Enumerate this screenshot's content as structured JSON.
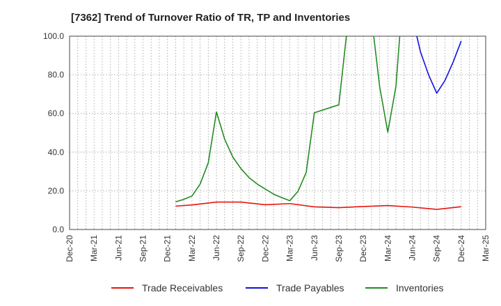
{
  "chart_data": {
    "type": "line",
    "title": "[7362]  Trend of Turnover Ratio of TR, TP and Inventories",
    "xlabel": "",
    "ylabel": "",
    "x_ticks": [
      "Dec-20",
      "Mar-21",
      "Jun-21",
      "Sep-21",
      "Dec-21",
      "Mar-22",
      "Jun-22",
      "Sep-22",
      "Dec-22",
      "Mar-23",
      "Jun-23",
      "Sep-23",
      "Dec-23",
      "Mar-24",
      "Jun-24",
      "Sep-24",
      "Dec-24",
      "Mar-25"
    ],
    "y_ticks": [
      "0.0",
      "20.0",
      "40.0",
      "60.0",
      "80.0",
      "100.0"
    ],
    "ylim": [
      0,
      100
    ],
    "grid": true,
    "legend_position": "bottom",
    "series": [
      {
        "name": "Trade Receivables",
        "color": "#e8140c",
        "points": [
          {
            "x": "2022-01",
            "y": 12.1
          },
          {
            "x": "2022-03",
            "y": 12.7
          },
          {
            "x": "2022-06",
            "y": 14.2
          },
          {
            "x": "2022-09",
            "y": 14.2
          },
          {
            "x": "2022-12",
            "y": 12.8
          },
          {
            "x": "2023-03",
            "y": 13.4
          },
          {
            "x": "2023-06",
            "y": 11.7
          },
          {
            "x": "2023-09",
            "y": 11.3
          },
          {
            "x": "2023-12",
            "y": 11.9
          },
          {
            "x": "2024-03",
            "y": 12.4
          },
          {
            "x": "2024-06",
            "y": 11.6
          },
          {
            "x": "2024-09",
            "y": 10.4
          },
          {
            "x": "2024-12",
            "y": 11.8
          }
        ]
      },
      {
        "name": "Trade Payables",
        "color": "#1010dd",
        "points": [
          {
            "x": "2024-05",
            "y": 148
          },
          {
            "x": "2024-06",
            "y": 110
          },
          {
            "x": "2024-07",
            "y": 92
          },
          {
            "x": "2024-08",
            "y": 80
          },
          {
            "x": "2024-09",
            "y": 70.5
          },
          {
            "x": "2024-10",
            "y": 77
          },
          {
            "x": "2024-11",
            "y": 86.5
          },
          {
            "x": "2024-12",
            "y": 97.5
          }
        ]
      },
      {
        "name": "Inventories",
        "color": "#228b22",
        "points": [
          {
            "x": "2022-01",
            "y": 14.3
          },
          {
            "x": "2022-02",
            "y": 15.6
          },
          {
            "x": "2022-03",
            "y": 17.3
          },
          {
            "x": "2022-04",
            "y": 23.5
          },
          {
            "x": "2022-05",
            "y": 34.5
          },
          {
            "x": "2022-06",
            "y": 60.8
          },
          {
            "x": "2022-07",
            "y": 46.8
          },
          {
            "x": "2022-08",
            "y": 37.5
          },
          {
            "x": "2022-09",
            "y": 31.5
          },
          {
            "x": "2022-10",
            "y": 26.8
          },
          {
            "x": "2022-11",
            "y": 23.5
          },
          {
            "x": "2022-12",
            "y": 20.9
          },
          {
            "x": "2023-01",
            "y": 18.3
          },
          {
            "x": "2023-02",
            "y": 16.5
          },
          {
            "x": "2023-03",
            "y": 14.9
          },
          {
            "x": "2023-04",
            "y": 19.8
          },
          {
            "x": "2023-05",
            "y": 29.5
          },
          {
            "x": "2023-06",
            "y": 60.4
          },
          {
            "x": "2023-09",
            "y": 64.5
          },
          {
            "x": "2023-10",
            "y": 103
          },
          {
            "x": "2024-01",
            "y": 110
          },
          {
            "x": "2024-02",
            "y": 74
          },
          {
            "x": "2024-03",
            "y": 50.3
          },
          {
            "x": "2024-04",
            "y": 74
          },
          {
            "x": "2024-05",
            "y": 130
          }
        ]
      }
    ]
  }
}
